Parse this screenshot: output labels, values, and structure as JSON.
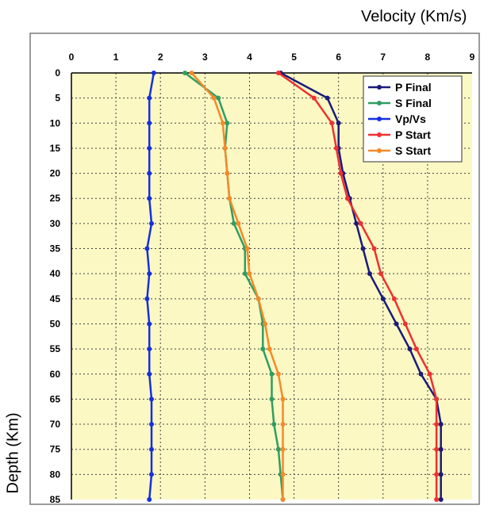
{
  "chart_data": {
    "type": "line",
    "title": "",
    "xlabel": "Velocity (Km/s)",
    "ylabel": "Depth (Km)",
    "xlim": [
      0,
      9
    ],
    "ylim": [
      0,
      85
    ],
    "x_axis_position": "top",
    "y_axis_inverted": true,
    "x_ticks": [
      "0",
      "1",
      "2",
      "3",
      "4",
      "5",
      "6",
      "7",
      "8",
      "9"
    ],
    "y_ticks": [
      "0",
      "5",
      "10",
      "15",
      "20",
      "25",
      "30",
      "35",
      "40",
      "45",
      "50",
      "55",
      "60",
      "65",
      "70",
      "75",
      "80",
      "85"
    ],
    "grid": true,
    "legend_position": "top-right",
    "plot_background": "#fbf8c4",
    "depth": [
      0,
      5,
      10,
      15,
      20,
      25,
      30,
      35,
      40,
      45,
      50,
      55,
      60,
      65,
      70,
      75,
      80,
      85
    ],
    "series": [
      {
        "name": "P Final",
        "color": "#1b1b7a",
        "values": [
          4.7,
          5.75,
          6.0,
          6.0,
          6.1,
          6.25,
          6.4,
          6.55,
          6.7,
          7.0,
          7.3,
          7.6,
          7.85,
          8.2,
          8.3,
          8.3,
          8.3,
          8.3
        ]
      },
      {
        "name": "S Final",
        "color": "#2e9e62",
        "values": [
          2.55,
          3.3,
          3.5,
          3.45,
          3.5,
          3.55,
          3.65,
          3.9,
          3.9,
          4.2,
          4.3,
          4.3,
          4.5,
          4.5,
          4.55,
          4.65,
          4.7,
          4.75
        ]
      },
      {
        "name": "Vp/Vs",
        "color": "#1530e0",
        "values": [
          1.85,
          1.75,
          1.75,
          1.75,
          1.75,
          1.75,
          1.8,
          1.7,
          1.75,
          1.7,
          1.75,
          1.75,
          1.75,
          1.8,
          1.8,
          1.8,
          1.8,
          1.75
        ]
      },
      {
        "name": "P Start",
        "color": "#f03030",
        "values": [
          4.65,
          5.45,
          5.85,
          5.95,
          6.05,
          6.2,
          6.5,
          6.8,
          6.95,
          7.25,
          7.5,
          7.75,
          8.05,
          8.2,
          8.2,
          8.2,
          8.2,
          8.2
        ]
      },
      {
        "name": "S Start",
        "color": "#f58a2a",
        "values": [
          2.7,
          3.2,
          3.4,
          3.45,
          3.5,
          3.55,
          3.75,
          3.95,
          4.0,
          4.2,
          4.35,
          4.45,
          4.65,
          4.75,
          4.75,
          4.75,
          4.75,
          4.75
        ]
      }
    ]
  }
}
